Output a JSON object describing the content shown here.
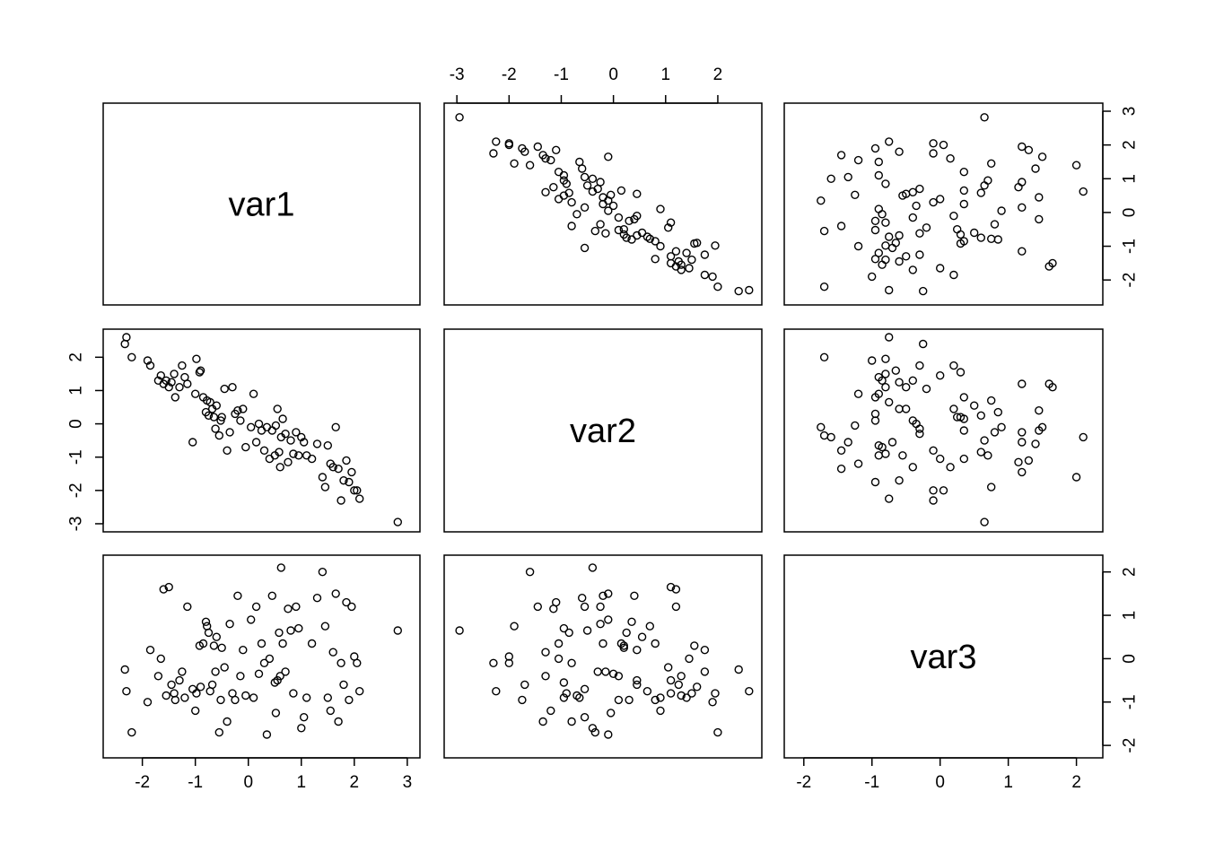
{
  "chart_data": {
    "type": "scatter",
    "variables": [
      "var1",
      "var2",
      "var3"
    ],
    "axes": {
      "var1": {
        "range": [
          -2.5,
          3.0
        ],
        "ticks": [
          -2,
          -1,
          0,
          1,
          2,
          3
        ]
      },
      "var2": {
        "range": [
          -3.0,
          2.6
        ],
        "ticks": [
          -3,
          -2,
          -1,
          0,
          1,
          2
        ]
      },
      "var3": {
        "range": [
          -2.1,
          2.2
        ],
        "ticks": [
          -2,
          -1,
          0,
          1,
          2
        ]
      }
    },
    "tick_labels": {
      "var1": [
        "-2",
        "-1",
        "0",
        "1",
        "2",
        "3"
      ],
      "var2": [
        "-3",
        "-2",
        "-1",
        "0",
        "1",
        "2"
      ],
      "var3": [
        "-2",
        "-1",
        "0",
        "1",
        "2"
      ]
    },
    "points": [
      [
        2.82,
        -2.95,
        0.65
      ],
      [
        -2.33,
        2.4,
        -0.25
      ],
      [
        -2.3,
        2.6,
        -0.75
      ],
      [
        -2.2,
        2.0,
        -1.7
      ],
      [
        -1.9,
        1.9,
        -1.0
      ],
      [
        -1.85,
        1.75,
        0.2
      ],
      [
        -1.7,
        1.3,
        -0.4
      ],
      [
        -1.65,
        1.45,
        0.0
      ],
      [
        -1.6,
        1.2,
        1.6
      ],
      [
        -1.55,
        1.3,
        -0.85
      ],
      [
        -1.5,
        1.1,
        1.65
      ],
      [
        -1.45,
        1.25,
        -0.6
      ],
      [
        -1.4,
        1.5,
        -0.8
      ],
      [
        -1.38,
        0.8,
        -0.95
      ],
      [
        -1.3,
        1.1,
        -0.5
      ],
      [
        -1.25,
        1.75,
        -0.3
      ],
      [
        -1.2,
        1.4,
        -0.9
      ],
      [
        -1.15,
        1.2,
        1.2
      ],
      [
        -1.05,
        -0.55,
        -0.7
      ],
      [
        -1.0,
        0.9,
        -1.2
      ],
      [
        -0.98,
        1.95,
        -0.8
      ],
      [
        -0.92,
        1.55,
        0.3
      ],
      [
        -0.9,
        1.6,
        -0.65
      ],
      [
        -0.85,
        0.8,
        0.35
      ],
      [
        -0.8,
        0.35,
        0.85
      ],
      [
        -0.78,
        0.7,
        0.75
      ],
      [
        -0.75,
        0.25,
        0.6
      ],
      [
        -0.72,
        0.65,
        -0.75
      ],
      [
        -0.68,
        0.45,
        -0.6
      ],
      [
        -0.65,
        0.2,
        0.3
      ],
      [
        -0.62,
        -0.15,
        -0.3
      ],
      [
        -0.6,
        0.55,
        0.5
      ],
      [
        -0.55,
        -0.35,
        -1.7
      ],
      [
        -0.52,
        0.1,
        -0.95
      ],
      [
        -0.5,
        0.2,
        0.25
      ],
      [
        -0.45,
        1.05,
        -0.2
      ],
      [
        -0.4,
        -0.8,
        -1.45
      ],
      [
        -0.35,
        -0.25,
        0.8
      ],
      [
        -0.3,
        1.1,
        -0.8
      ],
      [
        -0.25,
        0.3,
        -0.95
      ],
      [
        -0.2,
        0.4,
        1.45
      ],
      [
        -0.15,
        0.1,
        -0.4
      ],
      [
        -0.1,
        0.45,
        0.2
      ],
      [
        -0.05,
        -0.7,
        -0.85
      ],
      [
        0.05,
        -0.1,
        0.9
      ],
      [
        0.1,
        0.9,
        -0.9
      ],
      [
        0.15,
        -0.55,
        1.2
      ],
      [
        0.2,
        0.0,
        -0.35
      ],
      [
        0.25,
        -0.2,
        0.35
      ],
      [
        0.3,
        -0.8,
        -0.1
      ],
      [
        0.35,
        -0.1,
        -1.75
      ],
      [
        0.4,
        -1.05,
        0.0
      ],
      [
        0.45,
        -0.2,
        1.45
      ],
      [
        0.5,
        -0.95,
        -0.55
      ],
      [
        0.52,
        -0.05,
        -1.25
      ],
      [
        0.55,
        0.45,
        -0.5
      ],
      [
        0.58,
        -0.85,
        0.6
      ],
      [
        0.6,
        -1.3,
        -0.4
      ],
      [
        0.62,
        -0.4,
        2.1
      ],
      [
        0.65,
        0.15,
        0.35
      ],
      [
        0.7,
        -0.3,
        -0.3
      ],
      [
        0.75,
        -1.15,
        1.15
      ],
      [
        0.8,
        -0.5,
        0.65
      ],
      [
        0.85,
        -0.9,
        -0.8
      ],
      [
        0.9,
        -0.25,
        1.2
      ],
      [
        0.95,
        -0.95,
        0.7
      ],
      [
        1.0,
        -0.4,
        -1.6
      ],
      [
        1.05,
        -0.55,
        -1.35
      ],
      [
        1.1,
        -0.95,
        -0.9
      ],
      [
        1.2,
        -1.05,
        0.35
      ],
      [
        1.3,
        -0.6,
        1.4
      ],
      [
        1.4,
        -1.6,
        2.0
      ],
      [
        1.45,
        -1.9,
        0.75
      ],
      [
        1.5,
        -0.65,
        -0.9
      ],
      [
        1.55,
        -1.2,
        -1.2
      ],
      [
        1.6,
        -1.3,
        0.15
      ],
      [
        1.65,
        -0.1,
        1.5
      ],
      [
        1.7,
        -1.35,
        -1.45
      ],
      [
        1.75,
        -2.3,
        -0.1
      ],
      [
        1.8,
        -1.7,
        -0.6
      ],
      [
        1.85,
        -1.1,
        1.3
      ],
      [
        1.9,
        -1.75,
        -0.95
      ],
      [
        1.95,
        -1.45,
        1.2
      ],
      [
        2.0,
        -2.0,
        0.05
      ],
      [
        2.05,
        -2.0,
        -0.1
      ],
      [
        2.1,
        -2.25,
        -0.75
      ]
    ]
  }
}
